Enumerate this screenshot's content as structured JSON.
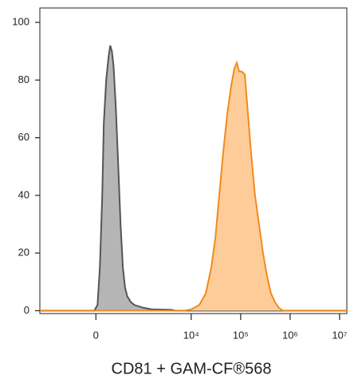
{
  "chart_data": {
    "type": "area",
    "xlabel": "CD81 + GAM-CF®568",
    "xscale": "asinh",
    "xlim": [
      -1600,
      14000000
    ],
    "ylim": [
      -1,
      105
    ],
    "xticks": [
      0,
      {
        "value": 10000,
        "label": "10⁴"
      },
      {
        "value": 100000,
        "label": "10⁵"
      },
      {
        "value": 1000000,
        "label": "10⁶"
      },
      {
        "value": 10000000,
        "label": "10⁷"
      }
    ],
    "yticks": [
      0,
      20,
      40,
      60,
      80,
      100
    ],
    "series": [
      {
        "color": "#555555",
        "fill": "#b5b5b5",
        "x": [
          -1600,
          -18,
          18,
          44,
          71,
          89,
          118,
          148,
          170,
          193,
          217,
          254,
          294,
          336,
          382,
          430,
          483,
          578,
          687,
          1080,
          1570,
          4000,
          4810,
          14000000
        ],
        "values": [
          0,
          0,
          2,
          15,
          40,
          65,
          80,
          88,
          92,
          90,
          85,
          70,
          50,
          30,
          15,
          8,
          5,
          3,
          2,
          1,
          0.5,
          0.3,
          0,
          0
        ]
      },
      {
        "color": "#f28a1c",
        "fill": "#fdcc99",
        "x": [
          -1600,
          7500,
          10100,
          14600,
          19700,
          25500,
          30700,
          36900,
          44400,
          53400,
          64300,
          74600,
          83400,
          93100,
          104000,
          121000,
          135000,
          162000,
          195000,
          235000,
          283000,
          341000,
          410000,
          493000,
          594000,
          715000,
          14000000
        ],
        "values": [
          0,
          0,
          0.5,
          2,
          6,
          15,
          25,
          40,
          55,
          68,
          78,
          84,
          86,
          83,
          83,
          82,
          72,
          55,
          40,
          30,
          20,
          12,
          6,
          3,
          1,
          0,
          0
        ]
      }
    ]
  }
}
